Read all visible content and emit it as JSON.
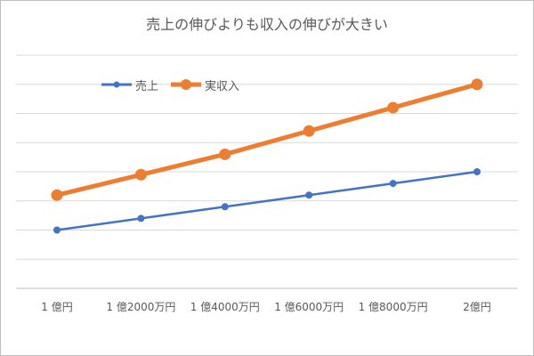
{
  "chart_data": {
    "type": "line",
    "title": "売上の伸びよりも収入の伸びが大きい",
    "categories": [
      "1 億円",
      "1 億2000万円",
      "1 億4000万円",
      "1 億6000万円",
      "1 億8000万円",
      "2億円"
    ],
    "series": [
      {
        "name": "売上",
        "values": [
          2,
          2.4,
          2.8,
          3.2,
          3.6,
          4.0
        ],
        "color": "#4472c4"
      },
      {
        "name": "実収入",
        "values": [
          3.2,
          3.9,
          4.6,
          5.4,
          6.2,
          7.0
        ],
        "color": "#ed7d31"
      }
    ],
    "ylim": [
      0,
      8
    ],
    "gridlines": 8,
    "y_tick_labels_shown": false,
    "grid": true,
    "legend_position": "top-left"
  }
}
